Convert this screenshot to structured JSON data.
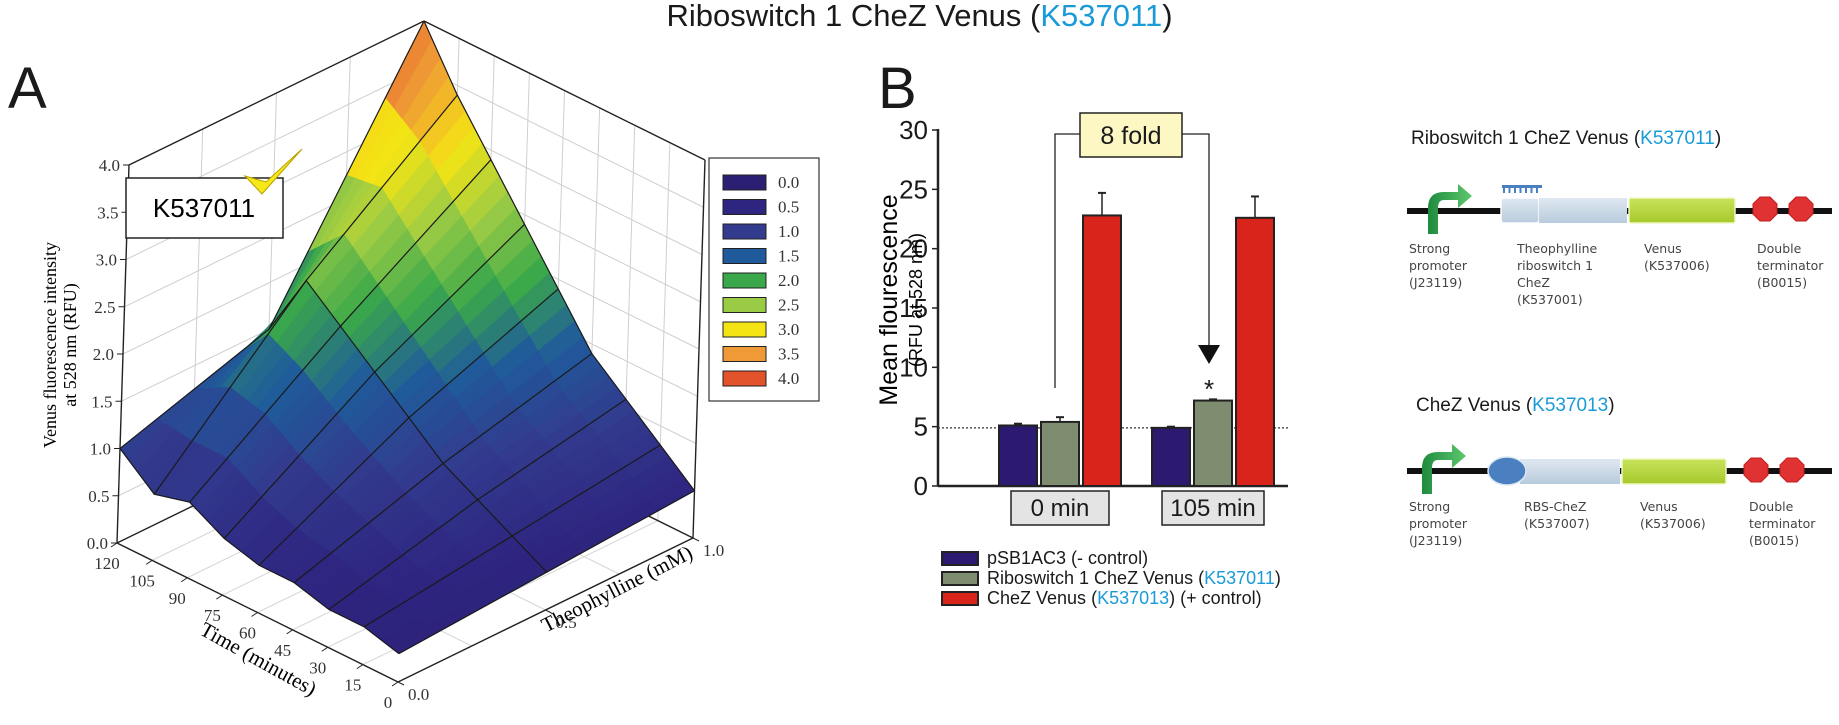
{
  "title": {
    "prefix": "Riboswitch 1  CheZ Venus (",
    "part": "K537011",
    "suffix": ")"
  },
  "panels": {
    "a": "A",
    "b": "B"
  },
  "chart_data": [
    {
      "id": "A",
      "type": "surface3d",
      "title": "",
      "annotation": "K537011",
      "xlabel": "Time (minutes)",
      "ylabel": "Theophylline (mM)",
      "zlabel_line1": "Venus fluorescence intensity",
      "zlabel_line2": "at 528 nm (RFU)",
      "x_ticks": [
        "0",
        "15",
        "30",
        "45",
        "60",
        "75",
        "90",
        "105",
        "120"
      ],
      "y_ticks": [
        "0.0",
        "0.5",
        "1.0"
      ],
      "z_ticks": [
        "0.0",
        "0.5",
        "1.0",
        "1.5",
        "2.0",
        "2.5",
        "3.0",
        "3.5",
        "4.0"
      ],
      "zlim": [
        0,
        4
      ],
      "x": [
        0,
        15,
        30,
        45,
        60,
        75,
        90,
        105,
        120
      ],
      "y": [
        0.0,
        0.5,
        1.0
      ],
      "z": [
        [
          0.3,
          0.4,
          0.5
        ],
        [
          0.4,
          0.6,
          0.8
        ],
        [
          0.4,
          0.8,
          1.1
        ],
        [
          0.5,
          1.0,
          1.4
        ],
        [
          0.5,
          1.3,
          1.9
        ],
        [
          0.6,
          1.6,
          2.4
        ],
        [
          0.8,
          1.9,
          2.9
        ],
        [
          0.7,
          2.2,
          3.4
        ],
        [
          1.0,
          1.5,
          4.0
        ]
      ],
      "legend": {
        "position": "right",
        "entries": [
          {
            "label": "0.0",
            "color": "#2a1f72"
          },
          {
            "label": "0.5",
            "color": "#2e2580"
          },
          {
            "label": "1.0",
            "color": "#323b8e"
          },
          {
            "label": "1.5",
            "color": "#1f5b9b"
          },
          {
            "label": "2.0",
            "color": "#3aa84a"
          },
          {
            "label": "2.5",
            "color": "#9acb45"
          },
          {
            "label": "3.0",
            "color": "#f4e414"
          },
          {
            "label": "3.5",
            "color": "#ef9a36"
          },
          {
            "label": "4.0",
            "color": "#e2522b"
          }
        ]
      }
    },
    {
      "id": "B",
      "type": "bar",
      "ylabel": "Mean flourescence",
      "ylabel_sub": "(RFU at 528 nm)",
      "ylim": [
        0,
        30
      ],
      "y_ticks": [
        "0",
        "5",
        "10",
        "15",
        "20",
        "25",
        "30"
      ],
      "baseline_value": 4.9,
      "categories": [
        "0 min",
        "105 min"
      ],
      "series": [
        {
          "name": "pSB1AC3 (- control)",
          "color": "#2b1a6f",
          "values": [
            5.1,
            4.9
          ],
          "errors": [
            0.15,
            0.1
          ]
        },
        {
          "name": "Riboswitch 1 CheZ Venus (K537011)",
          "color": "#7e8c6f",
          "values": [
            5.4,
            7.2
          ],
          "errors": [
            0.4,
            0.1
          ]
        },
        {
          "name": "CheZ Venus (K537013) (+ control)",
          "color": "#d9241c",
          "values": [
            22.8,
            22.6
          ],
          "errors": [
            1.9,
            1.8
          ]
        }
      ],
      "annotation": {
        "label": "8 fold",
        "from": "0 min",
        "to": "105 min",
        "marker": "*"
      },
      "legend_entries": [
        {
          "text": "pSB1AC3 (- control)",
          "part": "",
          "suffix": ""
        },
        {
          "text": "Riboswitch 1 CheZ Venus (",
          "part": "K537011",
          "suffix": ")"
        },
        {
          "text": "CheZ Venus (",
          "part": "K537013",
          "suffix": ") (+ control)"
        }
      ]
    }
  ],
  "constructs": [
    {
      "title_prefix": "Riboswitch 1 CheZ Venus (",
      "title_part": "K537011",
      "title_suffix": ")",
      "parts": [
        {
          "name": "Strong promoter",
          "lines": [
            "Strong",
            "promoter",
            "(J23119)"
          ]
        },
        {
          "name": "Theophylline riboswitch 1 CheZ",
          "lines": [
            "Theophylline",
            "riboswitch 1",
            "CheZ",
            "(K537001)"
          ]
        },
        {
          "name": "Venus",
          "lines": [
            "Venus",
            "(K537006)"
          ]
        },
        {
          "name": "Double terminator",
          "lines": [
            "Double",
            "terminator",
            "(B0015)"
          ]
        }
      ]
    },
    {
      "title_prefix": "CheZ Venus (",
      "title_part": "K537013",
      "title_suffix": ")",
      "parts": [
        {
          "name": "Strong promoter",
          "lines": [
            "Strong",
            "promoter",
            "(J23119)"
          ]
        },
        {
          "name": "RBS-CheZ",
          "lines": [
            "RBS-CheZ",
            "(K537007)"
          ]
        },
        {
          "name": "Venus",
          "lines": [
            "Venus",
            "(K537006)"
          ]
        },
        {
          "name": "Double terminator",
          "lines": [
            "Double",
            "terminator",
            "(B0015)"
          ]
        }
      ]
    }
  ],
  "colors": {
    "part_link": "#1a9bd7",
    "promoter": "#2fa84f",
    "cds": "#c5d5e4",
    "venus": "#b5d63a",
    "terminator": "#e03232",
    "rbs": "#4a7fc0"
  }
}
